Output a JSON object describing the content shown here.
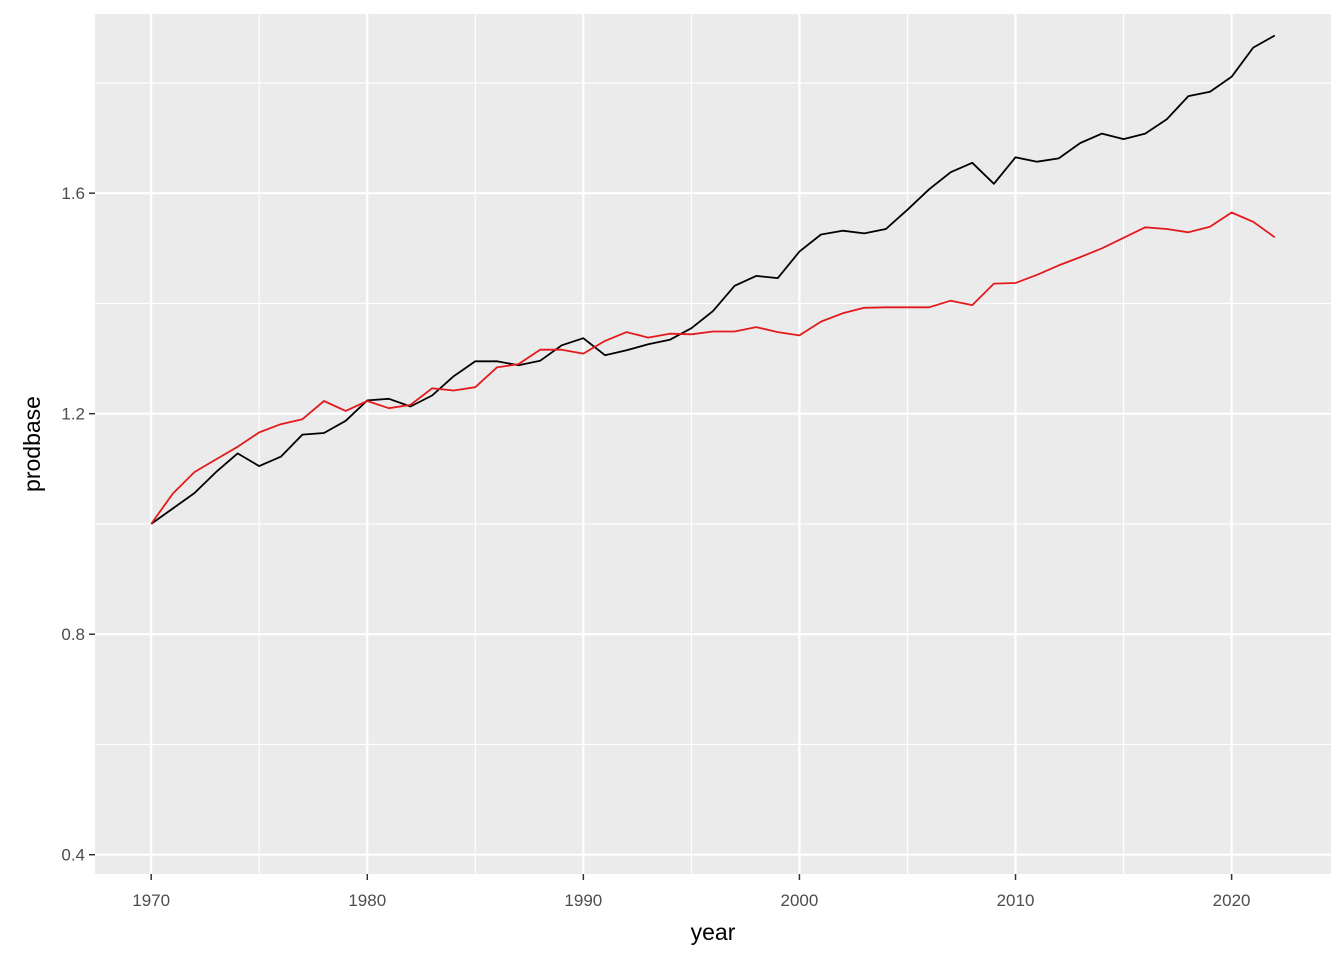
{
  "chart_data": {
    "type": "line",
    "xlabel": "year",
    "ylabel": "prodbase",
    "xlim": [
      1967.4,
      1924.6
    ],
    "ylim": [
      0.365,
      1.925
    ],
    "x_ticks": [
      1970,
      1980,
      1990,
      2000,
      2010,
      2020
    ],
    "x_tick_labels": [
      "1970",
      "1980",
      "1990",
      "2000",
      "2010",
      "2020"
    ],
    "x_minor_ticks": [
      1975,
      1985,
      1995,
      2005,
      2015
    ],
    "y_ticks": [
      0.4,
      0.8,
      1.2,
      1.6
    ],
    "y_tick_labels": [
      "0.4",
      "0.8",
      "1.2",
      "1.6"
    ],
    "y_minor_ticks": [
      0.6,
      1.0,
      1.4,
      1.8
    ],
    "grid": true,
    "legend": "none",
    "colors": {
      "panel": "#ebebeb",
      "grid": "#ffffff",
      "tick": "#333333"
    },
    "x": [
      1970,
      1971,
      1972,
      1973,
      1974,
      1975,
      1976,
      1977,
      1978,
      1979,
      1980,
      1981,
      1982,
      1983,
      1984,
      1985,
      1986,
      1987,
      1988,
      1989,
      1990,
      1991,
      1992,
      1993,
      1994,
      1995,
      1996,
      1997,
      1998,
      1999,
      2000,
      2001,
      2002,
      2003,
      2004,
      2005,
      2006,
      2007,
      2008,
      2009,
      2010,
      2011,
      2012,
      2013,
      2014,
      2015,
      2016,
      2017,
      2018,
      2019,
      2020,
      2021,
      2022
    ],
    "series": [
      {
        "color": "#000000",
        "values": [
          1.0,
          1.028,
          1.056,
          1.094,
          1.128,
          1.105,
          1.122,
          1.162,
          1.165,
          1.187,
          1.224,
          1.227,
          1.213,
          1.233,
          1.268,
          1.295,
          1.295,
          1.288,
          1.296,
          1.324,
          1.337,
          1.306,
          1.315,
          1.326,
          1.334,
          1.355,
          1.386,
          1.432,
          1.45,
          1.446,
          1.494,
          1.525,
          1.532,
          1.527,
          1.535,
          1.57,
          1.607,
          1.638,
          1.655,
          1.617,
          1.665,
          1.657,
          1.663,
          1.691,
          1.708,
          1.698,
          1.708,
          1.734,
          1.776,
          1.784,
          1.811,
          1.864,
          1.886
        ]
      },
      {
        "color": "#e31a1c",
        "values": [
          1.0,
          1.055,
          1.094,
          1.117,
          1.14,
          1.166,
          1.181,
          1.19,
          1.223,
          1.205,
          1.223,
          1.21,
          1.216,
          1.246,
          1.242,
          1.248,
          1.284,
          1.29,
          1.316,
          1.316,
          1.309,
          1.332,
          1.348,
          1.338,
          1.345,
          1.344,
          1.349,
          1.349,
          1.357,
          1.348,
          1.342,
          1.367,
          1.382,
          1.392,
          1.393,
          1.393,
          1.393,
          1.405,
          1.397,
          1.436,
          1.437,
          1.452,
          1.469,
          1.484,
          1.5,
          1.519,
          1.538,
          1.535,
          1.529,
          1.539,
          1.565,
          1.548,
          1.52
        ]
      }
    ]
  }
}
